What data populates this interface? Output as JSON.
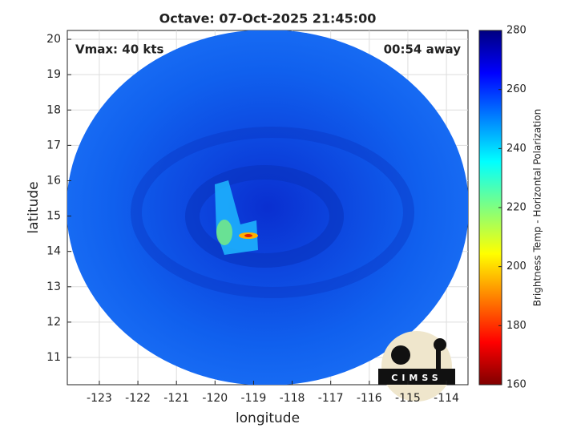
{
  "chart_data": {
    "type": "image",
    "title": "Octave: 07-Oct-2025 21:45:00",
    "annotations": [
      "Vmax: 40 kts",
      "00:54 away"
    ],
    "xlabel": "longitude",
    "ylabel": "latitude",
    "xlim": [
      -123.83,
      -113.44
    ],
    "ylim": [
      10.23,
      20.25
    ],
    "xticks": [
      -123,
      -122,
      -121,
      -120,
      -119,
      -118,
      -117,
      -116,
      -115,
      -114
    ],
    "yticks": [
      11,
      12,
      13,
      14,
      15,
      16,
      17,
      18,
      19,
      20
    ],
    "grid": true,
    "colorbar": {
      "label": "Brightness Temp - Horizontal Polarization",
      "lim": [
        160,
        280
      ],
      "ticks": [
        160,
        180,
        200,
        220,
        240,
        260,
        280
      ]
    },
    "logo": "CIMSS"
  }
}
